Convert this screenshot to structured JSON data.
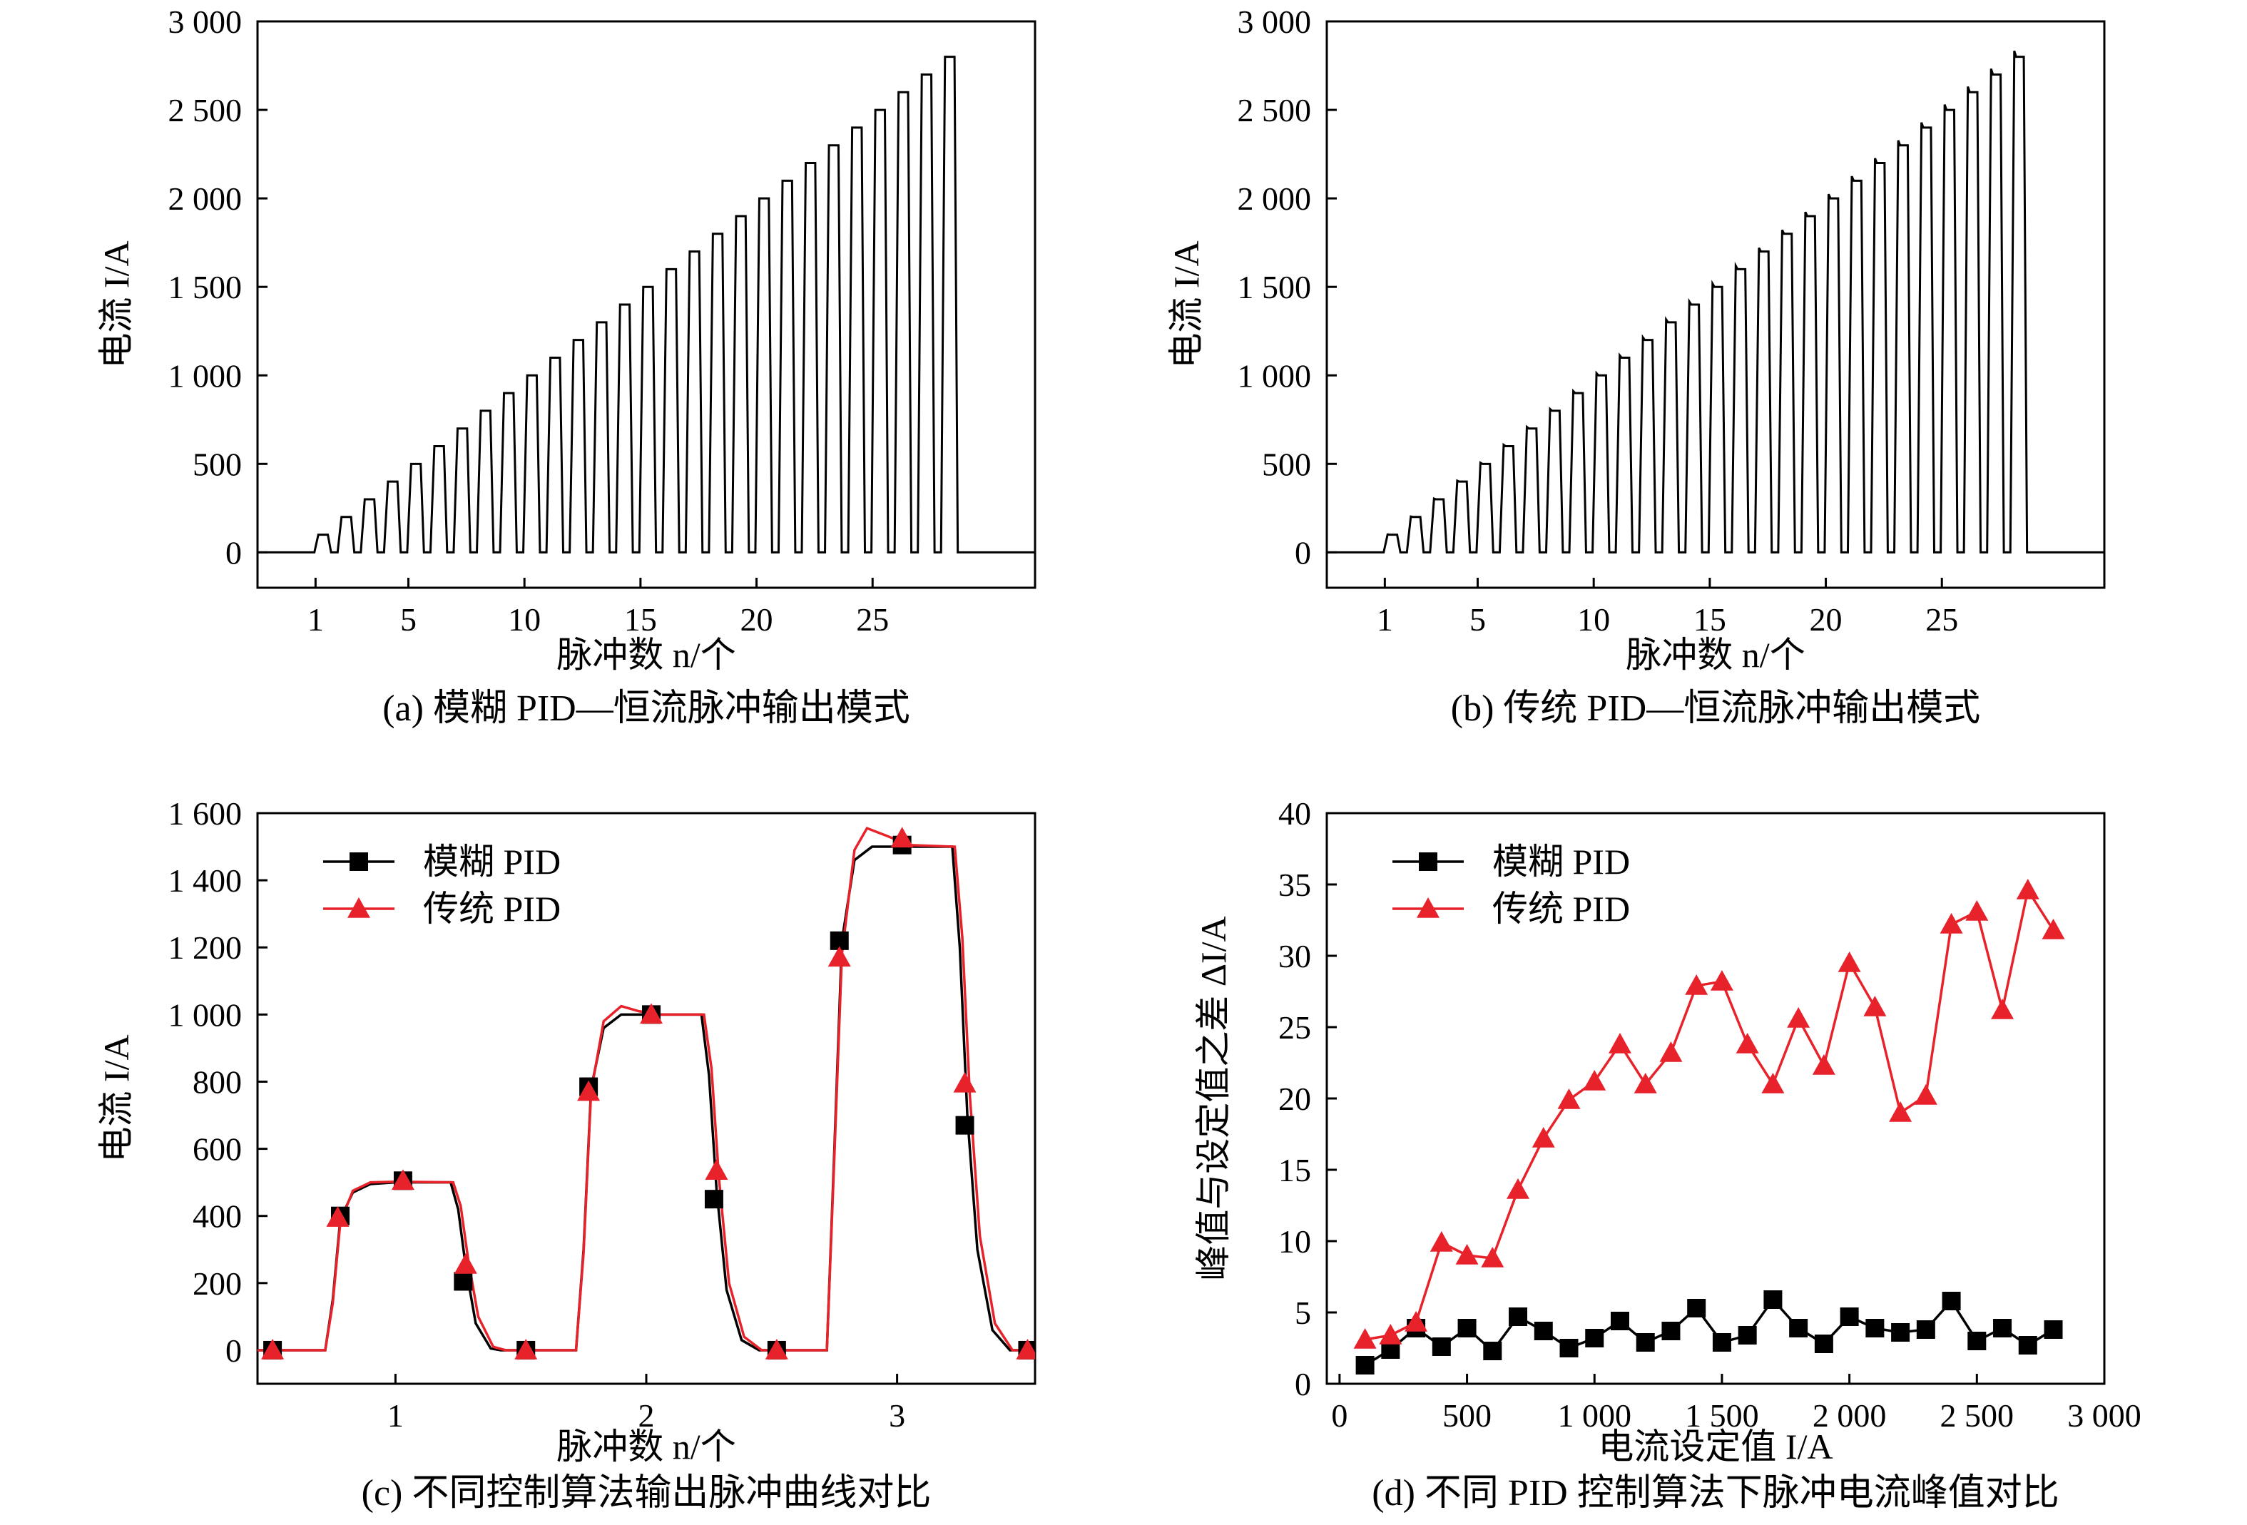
{
  "chart_data": [
    {
      "id": "a",
      "type": "line",
      "caption": "(a) 模糊 PID—恒流脉冲输出模式",
      "xlabel": "脉冲数 n/个",
      "ylabel": "电流 I/A",
      "xlim": [
        -1.5,
        32
      ],
      "ylim": [
        -200,
        3000
      ],
      "xticks": [
        {
          "v": 1,
          "label": "1"
        },
        {
          "v": 5,
          "label": "5"
        },
        {
          "v": 10,
          "label": "10"
        },
        {
          "v": 15,
          "label": "15"
        },
        {
          "v": 20,
          "label": "20"
        },
        {
          "v": 25,
          "label": "25"
        }
      ],
      "yticks": [
        {
          "v": 0,
          "label": "0"
        },
        {
          "v": 500,
          "label": "500"
        },
        {
          "v": 1000,
          "label": "1 000"
        },
        {
          "v": 1500,
          "label": "1 500"
        },
        {
          "v": 2000,
          "label": "2 000"
        },
        {
          "v": 2500,
          "label": "2 500"
        },
        {
          "v": 3000,
          "label": "3 000"
        }
      ],
      "pulse_train": {
        "count": 28,
        "step": 100,
        "start_n": 1,
        "period": 1,
        "width": 0.55,
        "baseline": 0,
        "overshoot": 0,
        "x_end": 32
      },
      "series": [
        {
          "color": "#000000"
        }
      ]
    },
    {
      "id": "b",
      "type": "line",
      "caption": "(b) 传统 PID—恒流脉冲输出模式",
      "xlabel": "脉冲数 n/个",
      "ylabel": "电流 I/A",
      "xlim": [
        -1.5,
        32
      ],
      "ylim": [
        -200,
        3000
      ],
      "xticks": [
        {
          "v": 1,
          "label": "1"
        },
        {
          "v": 5,
          "label": "5"
        },
        {
          "v": 10,
          "label": "10"
        },
        {
          "v": 15,
          "label": "15"
        },
        {
          "v": 20,
          "label": "20"
        },
        {
          "v": 25,
          "label": "25"
        }
      ],
      "yticks": [
        {
          "v": 0,
          "label": "0"
        },
        {
          "v": 500,
          "label": "500"
        },
        {
          "v": 1000,
          "label": "1 000"
        },
        {
          "v": 1500,
          "label": "1 500"
        },
        {
          "v": 2000,
          "label": "2 000"
        },
        {
          "v": 2500,
          "label": "2 500"
        },
        {
          "v": 3000,
          "label": "3 000"
        }
      ],
      "pulse_train": {
        "count": 28,
        "step": 100,
        "start_n": 1,
        "period": 1,
        "width": 0.55,
        "baseline": 0,
        "overshoot": 0.012,
        "x_end": 32
      },
      "series": [
        {
          "color": "#000000"
        }
      ]
    },
    {
      "id": "c",
      "type": "line",
      "caption": "(c) 不同控制算法输出脉冲曲线对比",
      "xlabel": "脉冲数 n/个",
      "ylabel": "电流 I/A",
      "xlim": [
        0.45,
        3.55
      ],
      "ylim": [
        -100,
        1600
      ],
      "xticks": [
        {
          "v": 1,
          "label": "1"
        },
        {
          "v": 2,
          "label": "2"
        },
        {
          "v": 3,
          "label": "3"
        }
      ],
      "yticks": [
        {
          "v": 0,
          "label": "0"
        },
        {
          "v": 200,
          "label": "200"
        },
        {
          "v": 400,
          "label": "400"
        },
        {
          "v": 600,
          "label": "600"
        },
        {
          "v": 800,
          "label": "800"
        },
        {
          "v": 1000,
          "label": "1 000"
        },
        {
          "v": 1200,
          "label": "1 200"
        },
        {
          "v": 1400,
          "label": "1 400"
        },
        {
          "v": 1600,
          "label": "1 600"
        }
      ],
      "legend": {
        "position": "top-left"
      },
      "series": [
        {
          "name": "模糊 PID",
          "color": "#000000",
          "marker": "square",
          "curve": [
            [
              0.45,
              0
            ],
            [
              0.72,
              0
            ],
            [
              0.75,
              150
            ],
            [
              0.78,
              390
            ],
            [
              0.83,
              470
            ],
            [
              0.9,
              495
            ],
            [
              1.0,
              500
            ],
            [
              1.22,
              500
            ],
            [
              1.25,
              420
            ],
            [
              1.28,
              250
            ],
            [
              1.32,
              80
            ],
            [
              1.38,
              5
            ],
            [
              1.42,
              0
            ],
            [
              1.72,
              0
            ],
            [
              1.75,
              300
            ],
            [
              1.78,
              780
            ],
            [
              1.83,
              960
            ],
            [
              1.9,
              1000
            ],
            [
              2.22,
              1000
            ],
            [
              2.25,
              820
            ],
            [
              2.28,
              480
            ],
            [
              2.32,
              180
            ],
            [
              2.38,
              30
            ],
            [
              2.45,
              0
            ],
            [
              2.72,
              0
            ],
            [
              2.75,
              600
            ],
            [
              2.78,
              1220
            ],
            [
              2.83,
              1460
            ],
            [
              2.9,
              1500
            ],
            [
              3.22,
              1500
            ],
            [
              3.25,
              1200
            ],
            [
              3.28,
              700
            ],
            [
              3.32,
              300
            ],
            [
              3.38,
              60
            ],
            [
              3.45,
              0
            ],
            [
              3.55,
              0
            ]
          ],
          "markers": [
            [
              0.51,
              0
            ],
            [
              0.78,
              400
            ],
            [
              1.03,
              505
            ],
            [
              1.27,
              205
            ],
            [
              1.52,
              0
            ],
            [
              1.77,
              785
            ],
            [
              2.02,
              1000
            ],
            [
              2.27,
              450
            ],
            [
              2.52,
              0
            ],
            [
              2.77,
              1220
            ],
            [
              3.02,
              1505
            ],
            [
              3.27,
              670
            ],
            [
              3.52,
              0
            ]
          ]
        },
        {
          "name": "传统 PID",
          "color": "#e8222b",
          "marker": "triangle",
          "curve": [
            [
              0.45,
              0
            ],
            [
              0.72,
              0
            ],
            [
              0.75,
              140
            ],
            [
              0.78,
              380
            ],
            [
              0.83,
              475
            ],
            [
              0.9,
              500
            ],
            [
              1.0,
              502
            ],
            [
              1.23,
              500
            ],
            [
              1.26,
              430
            ],
            [
              1.29,
              270
            ],
            [
              1.33,
              100
            ],
            [
              1.39,
              10
            ],
            [
              1.44,
              0
            ],
            [
              1.72,
              0
            ],
            [
              1.75,
              290
            ],
            [
              1.78,
              770
            ],
            [
              1.83,
              980
            ],
            [
              1.9,
              1025
            ],
            [
              1.97,
              1010
            ],
            [
              2.05,
              1000
            ],
            [
              2.23,
              1000
            ],
            [
              2.26,
              840
            ],
            [
              2.29,
              510
            ],
            [
              2.33,
              200
            ],
            [
              2.39,
              40
            ],
            [
              2.46,
              0
            ],
            [
              2.72,
              0
            ],
            [
              2.75,
              580
            ],
            [
              2.78,
              1180
            ],
            [
              2.83,
              1490
            ],
            [
              2.88,
              1555
            ],
            [
              2.95,
              1535
            ],
            [
              3.05,
              1505
            ],
            [
              3.23,
              1500
            ],
            [
              3.26,
              1230
            ],
            [
              3.29,
              760
            ],
            [
              3.33,
              340
            ],
            [
              3.39,
              80
            ],
            [
              3.46,
              0
            ],
            [
              3.55,
              0
            ]
          ],
          "markers": [
            [
              0.51,
              0
            ],
            [
              0.77,
              395
            ],
            [
              1.03,
              505
            ],
            [
              1.28,
              255
            ],
            [
              1.52,
              0
            ],
            [
              1.77,
              770
            ],
            [
              2.02,
              1000
            ],
            [
              2.28,
              535
            ],
            [
              2.52,
              0
            ],
            [
              2.77,
              1170
            ],
            [
              3.02,
              1525
            ],
            [
              3.27,
              795
            ],
            [
              3.52,
              0
            ]
          ]
        }
      ]
    },
    {
      "id": "d",
      "type": "line",
      "caption": "(d) 不同 PID 控制算法下脉冲电流峰值对比",
      "xlabel": "电流设定值 I/A",
      "ylabel": "峰值与设定值之差 ΔI/A",
      "xlim": [
        -50,
        3000
      ],
      "ylim": [
        0,
        40
      ],
      "xticks": [
        {
          "v": 0,
          "label": "0"
        },
        {
          "v": 500,
          "label": "500"
        },
        {
          "v": 1000,
          "label": "1 000"
        },
        {
          "v": 1500,
          "label": "1 500"
        },
        {
          "v": 2000,
          "label": "2 000"
        },
        {
          "v": 2500,
          "label": "2 500"
        },
        {
          "v": 3000,
          "label": "3 000"
        }
      ],
      "yticks": [
        {
          "v": 0,
          "label": "0"
        },
        {
          "v": 5,
          "label": "5"
        },
        {
          "v": 10,
          "label": "10"
        },
        {
          "v": 15,
          "label": "15"
        },
        {
          "v": 20,
          "label": "20"
        },
        {
          "v": 25,
          "label": "25"
        },
        {
          "v": 30,
          "label": "30"
        },
        {
          "v": 35,
          "label": "35"
        },
        {
          "v": 40,
          "label": "40"
        }
      ],
      "legend": {
        "position": "top-left"
      },
      "x": [
        100,
        200,
        300,
        400,
        500,
        600,
        700,
        800,
        900,
        1000,
        1100,
        1200,
        1300,
        1400,
        1500,
        1600,
        1700,
        1800,
        1900,
        2000,
        2100,
        2200,
        2300,
        2400,
        2500,
        2600,
        2700,
        2800
      ],
      "series": [
        {
          "name": "模糊 PID",
          "color": "#000000",
          "marker": "square",
          "values": [
            1.3,
            2.4,
            3.9,
            2.6,
            3.9,
            2.3,
            4.7,
            3.7,
            2.5,
            3.2,
            4.4,
            2.9,
            3.7,
            5.3,
            2.9,
            3.4,
            5.9,
            3.9,
            2.8,
            4.7,
            3.9,
            3.6,
            3.8,
            5.8,
            3.0,
            3.9,
            2.7,
            3.8
          ]
        },
        {
          "name": "传统 PID",
          "color": "#e8222b",
          "marker": "triangle",
          "values": [
            3.1,
            3.4,
            4.3,
            9.9,
            9.0,
            8.8,
            13.6,
            17.2,
            19.9,
            21.2,
            23.8,
            21.0,
            23.2,
            27.9,
            28.2,
            23.8,
            21.0,
            25.6,
            22.3,
            29.5,
            26.4,
            19.0,
            20.2,
            32.2,
            33.1,
            26.2,
            34.6,
            31.8
          ]
        }
      ]
    }
  ]
}
